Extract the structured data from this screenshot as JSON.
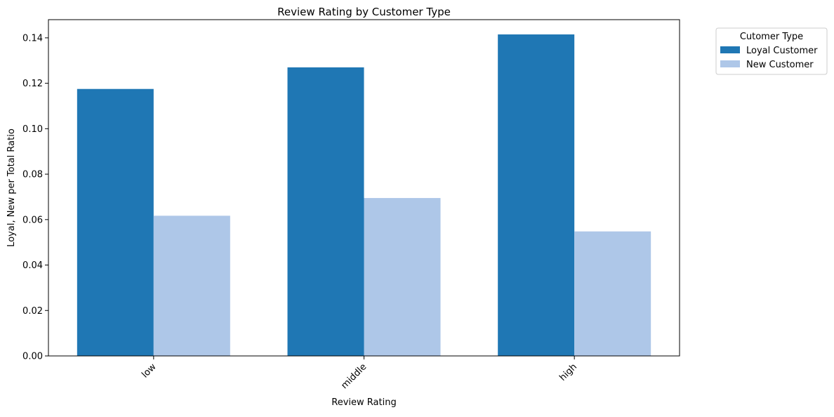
{
  "chart_data": {
    "type": "bar",
    "title": "Review Rating by Customer Type",
    "xlabel": "Review Rating",
    "ylabel": "Loyal, New per Total Ratio",
    "categories": [
      "low",
      "middle",
      "high"
    ],
    "series": [
      {
        "name": "Loyal Customer",
        "color": "#1f77b4",
        "values": [
          0.1175,
          0.127,
          0.1415
        ]
      },
      {
        "name": "New Customer",
        "color": "#aec7e8",
        "values": [
          0.0617,
          0.0695,
          0.0548
        ]
      }
    ],
    "ylim": [
      0,
      0.148
    ],
    "yticks": [
      "0.00",
      "0.02",
      "0.04",
      "0.06",
      "0.08",
      "0.10",
      "0.12",
      "0.14"
    ],
    "legend": {
      "title": "Cutomer Type",
      "placement": "outside-top-right"
    },
    "grid": false,
    "xtick_rotation": 45
  }
}
